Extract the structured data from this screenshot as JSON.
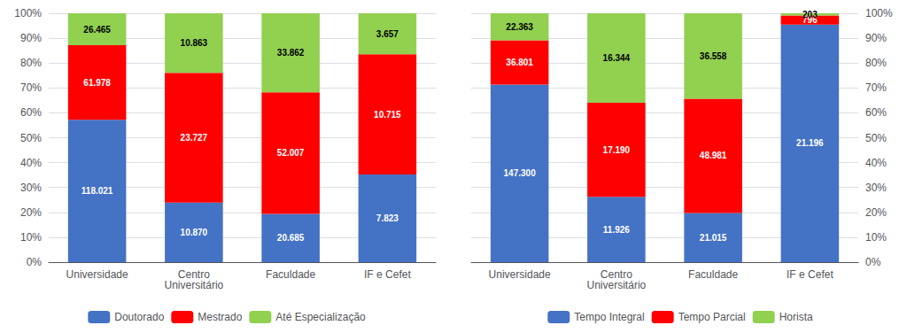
{
  "chart_data": [
    {
      "type": "bar",
      "stacked": true,
      "categories": [
        "Universidade",
        "Centro\nUniversitário",
        "Faculdade",
        "IF e Cefet"
      ],
      "series": [
        {
          "name": "Doutorado",
          "color": "#4472C4",
          "values": [
            57.163,
            23.911,
            19.413,
            35.2467
          ],
          "counts": [
            118021,
            10870,
            20685,
            7823
          ],
          "count_labels": [
            "118.021",
            "10.870",
            "20.685",
            "7.823"
          ]
        },
        {
          "name": "Mestrado",
          "color": "#FF0000",
          "values": [
            30.019,
            52.193,
            48.808,
            48.2766
          ],
          "counts": [
            61978,
            23727,
            52007,
            10715
          ],
          "count_labels": [
            "61.978",
            "23.727",
            "52.007",
            "10.715"
          ]
        },
        {
          "name": "Até Especialização",
          "color": "#92D050",
          "values": [
            12.818,
            23.896,
            31.779,
            16.4767
          ],
          "counts": [
            26465,
            10863,
            33862,
            3657
          ],
          "count_labels": [
            "26.465",
            "10.863",
            "33.862",
            "3.657"
          ]
        }
      ],
      "ylim": [
        0,
        100
      ],
      "yticks": [
        {
          "value": 0,
          "label": "0%"
        },
        {
          "value": 10,
          "label": "10%"
        },
        {
          "value": 20,
          "label": "20%"
        },
        {
          "value": 30,
          "label": "30%"
        },
        {
          "value": 40,
          "label": "40%"
        },
        {
          "value": 50,
          "label": "50%"
        },
        {
          "value": 60,
          "label": "60%"
        },
        {
          "value": 70,
          "label": "70%"
        },
        {
          "value": 80,
          "label": "80%"
        },
        {
          "value": 90,
          "label": "90%"
        },
        {
          "value": 100,
          "label": "100%"
        }
      ],
      "grid": true,
      "legend": "bottom"
    },
    {
      "type": "bar",
      "stacked": true,
      "categories": [
        "Universidade",
        "Centro\nUniversitário",
        "Faculdade",
        "IF e Cefet"
      ],
      "series": [
        {
          "name": "Tempo Integral",
          "color": "#4472C4",
          "values": [
            71.344,
            26.234,
            19.722,
            95.499
          ],
          "counts": [
            147300,
            11926,
            21015,
            21196
          ],
          "count_labels": [
            "147.300",
            "11.926",
            "21.015",
            "21.196"
          ]
        },
        {
          "name": "Tempo Parcial",
          "color": "#FF0000",
          "values": [
            17.824,
            37.813,
            45.968,
            3.586
          ],
          "counts": [
            36801,
            17190,
            48981,
            796
          ],
          "count_labels": [
            "36.801",
            "17.190",
            "48.981",
            "796"
          ]
        },
        {
          "name": "Horista",
          "color": "#92D050",
          "values": [
            10.831,
            35.952,
            34.309,
            0.915
          ],
          "counts": [
            22363,
            16344,
            36558,
            203
          ],
          "count_labels": [
            "22.363",
            "16.344",
            "36.558",
            "203"
          ]
        }
      ],
      "ylim": [
        0,
        100
      ],
      "yticks": [
        {
          "value": 0,
          "label": "0%"
        },
        {
          "value": 10,
          "label": "10%"
        },
        {
          "value": 20,
          "label": "20%"
        },
        {
          "value": 30,
          "label": "30%"
        },
        {
          "value": 40,
          "label": "40%"
        },
        {
          "value": 50,
          "label": "50%"
        },
        {
          "value": 60,
          "label": "60%"
        },
        {
          "value": 70,
          "label": "70%"
        },
        {
          "value": 80,
          "label": "80%"
        },
        {
          "value": 90,
          "label": "90%"
        },
        {
          "value": 100,
          "label": "100%"
        }
      ],
      "grid": true,
      "legend": "bottom"
    }
  ]
}
